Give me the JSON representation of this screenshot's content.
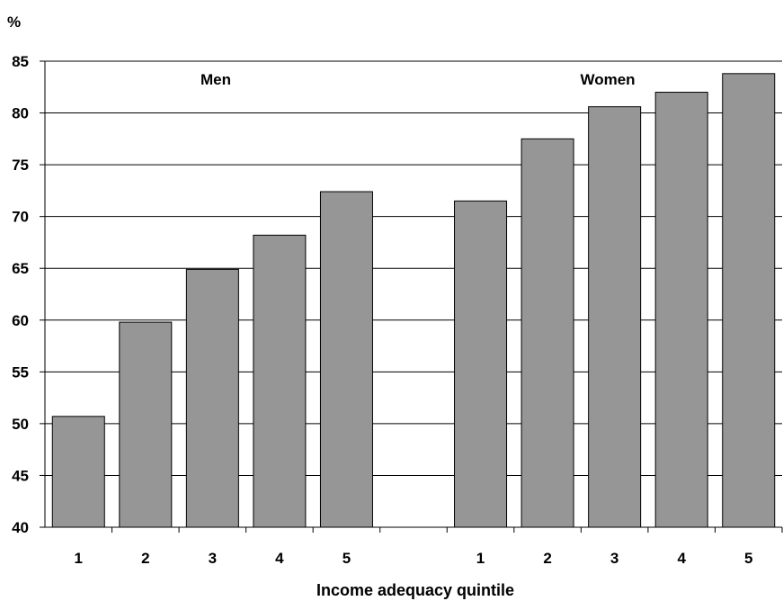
{
  "chart_data": {
    "type": "bar",
    "unit_label": "%",
    "xlabel": "Income adequacy quintile",
    "ylim": [
      40,
      85
    ],
    "yticks": [
      40,
      45,
      50,
      55,
      60,
      65,
      70,
      75,
      80,
      85
    ],
    "grid": true,
    "bar_color": "#969696",
    "groups": [
      {
        "label": "Men",
        "categories": [
          "1",
          "2",
          "3",
          "4",
          "5"
        ],
        "values": [
          50.7,
          59.8,
          64.9,
          68.2,
          72.4
        ]
      },
      {
        "label": "Women",
        "categories": [
          "1",
          "2",
          "3",
          "4",
          "5"
        ],
        "values": [
          71.5,
          77.5,
          80.6,
          82.0,
          83.8
        ]
      }
    ]
  }
}
